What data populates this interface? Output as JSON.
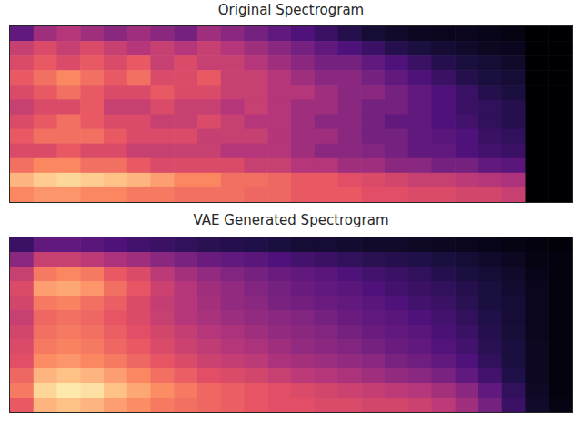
{
  "chart_data": [
    {
      "type": "heatmap",
      "title": "Original Spectrogram",
      "tick_labels": false,
      "color": "magma",
      "zlim": [
        0,
        100
      ],
      "z": [
        [
          30,
          45,
          50,
          45,
          40,
          45,
          40,
          35,
          45,
          40,
          35,
          30,
          25,
          20,
          15,
          10,
          8,
          6,
          5,
          5,
          4,
          3,
          0,
          0
        ],
        [
          55,
          60,
          55,
          60,
          55,
          50,
          55,
          50,
          55,
          50,
          45,
          40,
          35,
          30,
          25,
          20,
          15,
          12,
          10,
          8,
          6,
          5,
          0,
          0
        ],
        [
          60,
          65,
          60,
          65,
          60,
          65,
          55,
          60,
          55,
          55,
          50,
          45,
          40,
          35,
          35,
          30,
          25,
          20,
          15,
          12,
          10,
          8,
          0,
          0
        ],
        [
          65,
          70,
          75,
          70,
          65,
          70,
          60,
          60,
          65,
          55,
          55,
          50,
          45,
          40,
          40,
          35,
          30,
          25,
          20,
          15,
          12,
          10,
          0,
          0
        ],
        [
          60,
          65,
          70,
          65,
          60,
          60,
          65,
          60,
          60,
          55,
          55,
          50,
          50,
          45,
          40,
          40,
          35,
          30,
          25,
          20,
          15,
          12,
          0,
          0
        ],
        [
          55,
          60,
          60,
          65,
          55,
          55,
          60,
          55,
          55,
          50,
          55,
          50,
          45,
          45,
          40,
          35,
          35,
          30,
          25,
          20,
          18,
          15,
          0,
          0
        ],
        [
          60,
          65,
          70,
          65,
          60,
          60,
          55,
          55,
          60,
          55,
          50,
          50,
          45,
          40,
          40,
          35,
          30,
          30,
          25,
          22,
          18,
          15,
          0,
          0
        ],
        [
          65,
          70,
          70,
          70,
          65,
          60,
          60,
          60,
          55,
          55,
          55,
          50,
          45,
          45,
          40,
          35,
          35,
          30,
          28,
          25,
          20,
          18,
          0,
          0
        ],
        [
          60,
          60,
          65,
          60,
          60,
          55,
          55,
          55,
          55,
          50,
          50,
          50,
          45,
          40,
          40,
          38,
          35,
          30,
          30,
          25,
          22,
          20,
          0,
          0
        ],
        [
          70,
          75,
          75,
          70,
          70,
          65,
          60,
          60,
          60,
          60,
          55,
          55,
          50,
          50,
          45,
          45,
          40,
          40,
          35,
          35,
          30,
          28,
          0,
          0
        ],
        [
          85,
          90,
          92,
          90,
          88,
          85,
          80,
          75,
          75,
          70,
          70,
          68,
          65,
          65,
          62,
          60,
          58,
          55,
          55,
          52,
          50,
          48,
          0,
          0
        ],
        [
          75,
          78,
          78,
          75,
          75,
          72,
          72,
          70,
          70,
          70,
          68,
          68,
          65,
          65,
          65,
          62,
          62,
          60,
          60,
          58,
          58,
          55,
          0,
          0
        ]
      ]
    },
    {
      "type": "heatmap",
      "title": "VAE Generated Spectrogram",
      "tick_labels": false,
      "color": "magma",
      "zlim": [
        0,
        100
      ],
      "z": [
        [
          20,
          30,
          30,
          28,
          25,
          22,
          20,
          18,
          16,
          15,
          14,
          12,
          10,
          10,
          9,
          8,
          8,
          7,
          6,
          5,
          4,
          3,
          2,
          1
        ],
        [
          40,
          55,
          55,
          52,
          48,
          45,
          40,
          36,
          32,
          30,
          28,
          25,
          22,
          20,
          18,
          16,
          15,
          14,
          12,
          10,
          8,
          6,
          3,
          2
        ],
        [
          55,
          72,
          75,
          72,
          65,
          60,
          52,
          46,
          42,
          38,
          35,
          32,
          30,
          28,
          25,
          22,
          20,
          18,
          15,
          12,
          10,
          8,
          4,
          2
        ],
        [
          60,
          80,
          82,
          78,
          70,
          64,
          56,
          50,
          45,
          42,
          38,
          35,
          32,
          30,
          28,
          25,
          22,
          20,
          18,
          15,
          12,
          9,
          5,
          2
        ],
        [
          58,
          72,
          74,
          70,
          66,
          60,
          54,
          50,
          46,
          42,
          40,
          36,
          34,
          32,
          30,
          28,
          25,
          22,
          20,
          16,
          12,
          10,
          5,
          2
        ],
        [
          55,
          68,
          70,
          68,
          64,
          60,
          55,
          50,
          47,
          44,
          42,
          40,
          38,
          35,
          32,
          30,
          28,
          25,
          22,
          18,
          14,
          10,
          5,
          2
        ],
        [
          58,
          70,
          72,
          70,
          66,
          62,
          58,
          54,
          50,
          48,
          45,
          42,
          40,
          38,
          35,
          32,
          30,
          28,
          24,
          20,
          15,
          11,
          5,
          2
        ],
        [
          60,
          72,
          74,
          72,
          68,
          65,
          60,
          56,
          53,
          50,
          48,
          45,
          42,
          40,
          38,
          35,
          32,
          30,
          26,
          22,
          16,
          12,
          6,
          2
        ],
        [
          62,
          76,
          78,
          75,
          72,
          68,
          64,
          60,
          56,
          54,
          52,
          48,
          46,
          44,
          42,
          40,
          36,
          33,
          30,
          25,
          18,
          12,
          6,
          2
        ],
        [
          68,
          85,
          88,
          85,
          80,
          75,
          70,
          66,
          62,
          60,
          58,
          55,
          52,
          50,
          48,
          45,
          42,
          40,
          36,
          30,
          22,
          14,
          6,
          2
        ],
        [
          72,
          92,
          96,
          94,
          88,
          82,
          76,
          72,
          68,
          66,
          64,
          62,
          60,
          58,
          56,
          54,
          52,
          50,
          46,
          40,
          30,
          18,
          7,
          2
        ],
        [
          65,
          85,
          88,
          85,
          80,
          76,
          72,
          70,
          68,
          66,
          64,
          62,
          62,
          60,
          60,
          58,
          58,
          56,
          52,
          45,
          35,
          20,
          8,
          3
        ]
      ]
    }
  ]
}
